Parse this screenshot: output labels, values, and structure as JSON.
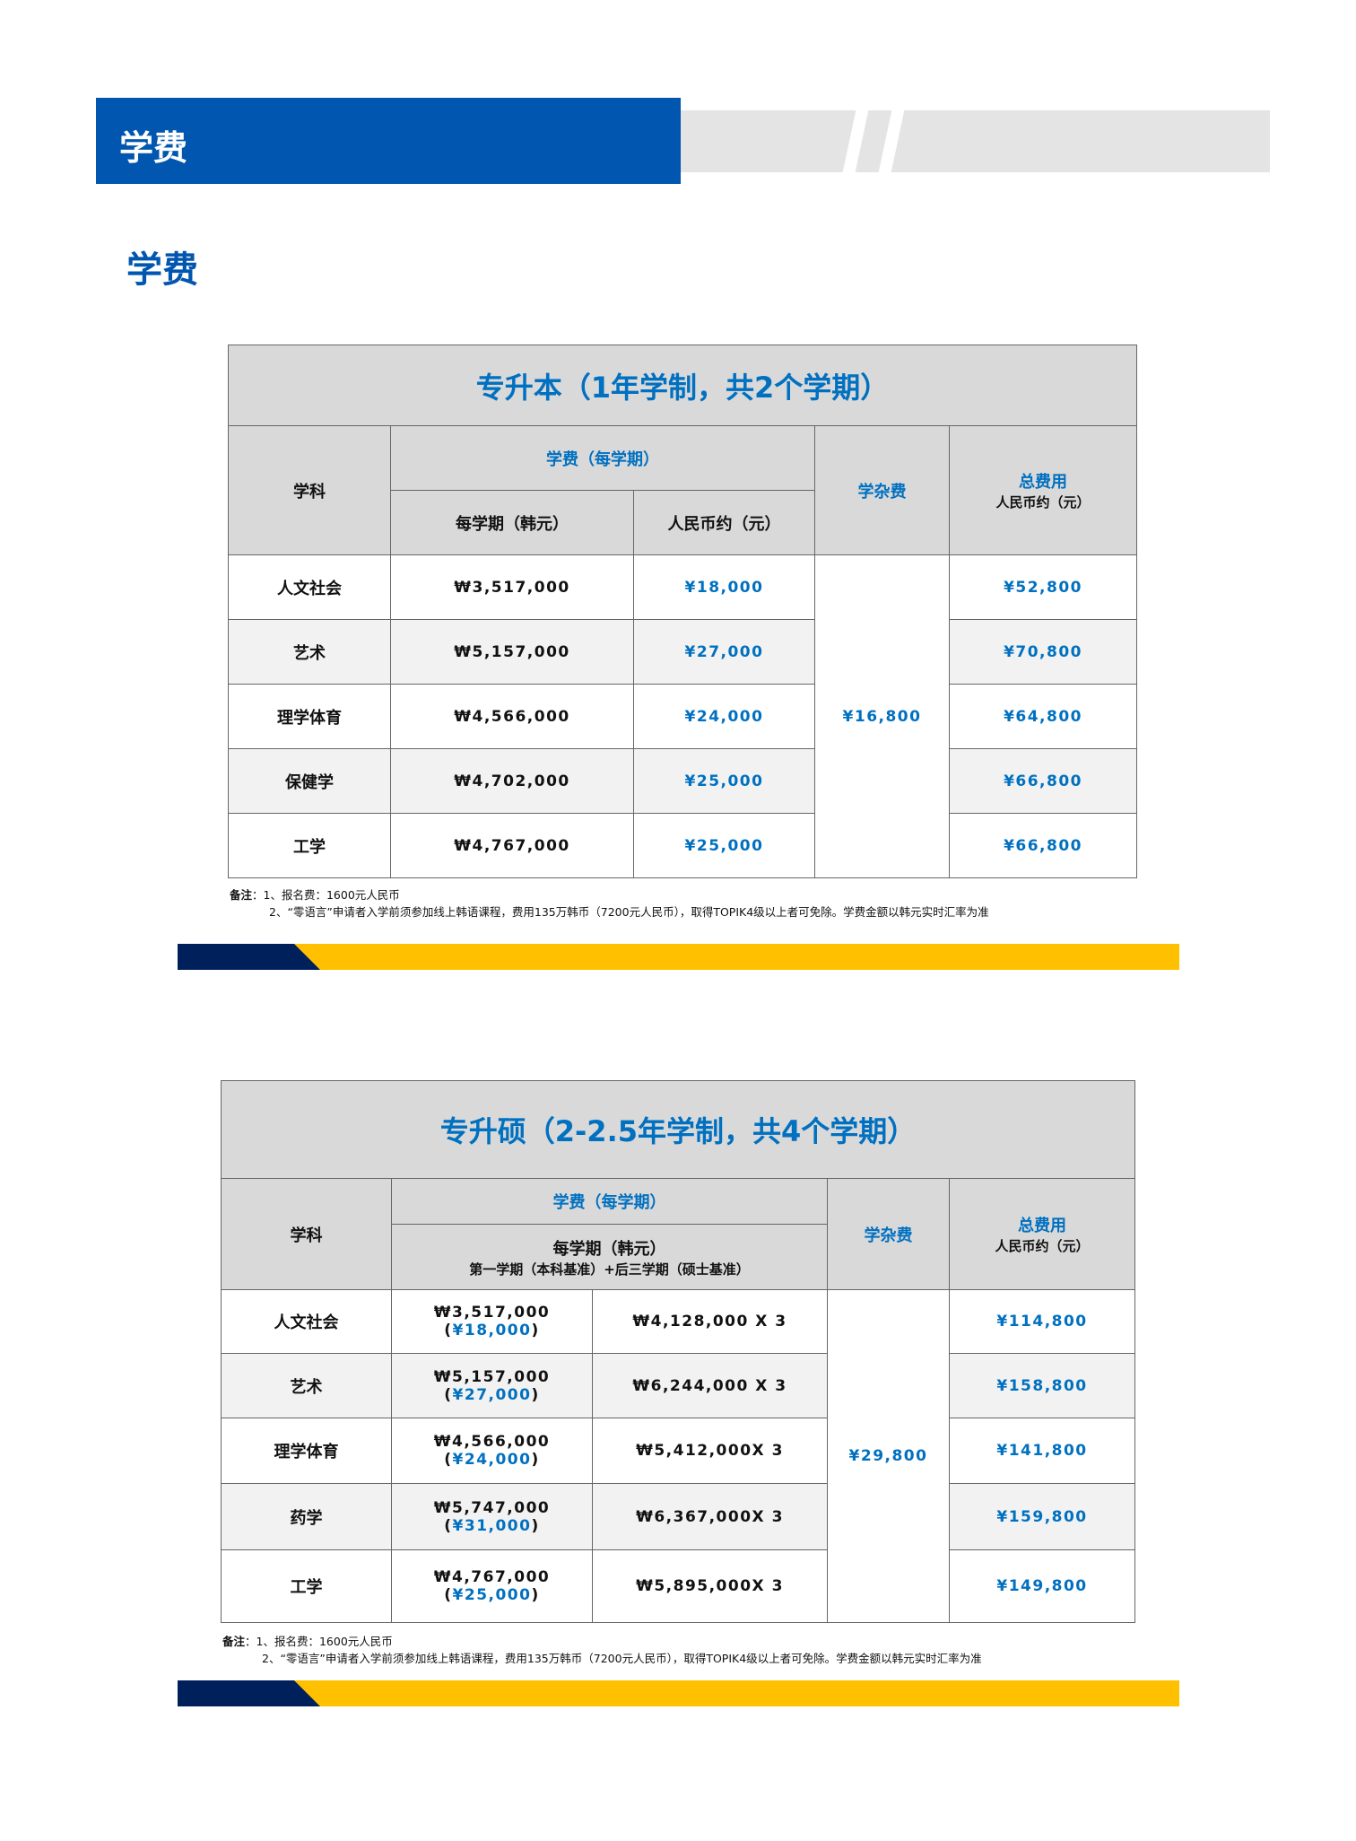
{
  "header": {
    "banner_title": "学费",
    "section_title": "学费"
  },
  "colors": {
    "brand_blue": "#0156b0",
    "accent_blue": "#0070c0",
    "header_gray": "#d9d9d9",
    "stripe_navy": "#00205c",
    "stripe_yellow": "#ffc000"
  },
  "table1": {
    "title": "专升本（1年学制，共2个学期）",
    "headers": {
      "subject": "学科",
      "tuition": "学费（每学期）",
      "krw": "每学期（韩元）",
      "cny": "人民币约（元）",
      "misc": "学杂费",
      "total": "总费用",
      "total_sub": "人民币约（元）"
    },
    "misc_fee": "¥16,800",
    "rows": [
      {
        "subject": "人文社会",
        "krw": "₩3,517,000",
        "cny": "¥18,000",
        "total": "¥52,800"
      },
      {
        "subject": "艺术",
        "krw": "₩5,157,000",
        "cny": "¥27,000",
        "total": "¥70,800"
      },
      {
        "subject": "理学体育",
        "krw": "₩4,566,000",
        "cny": "¥24,000",
        "total": "¥64,800"
      },
      {
        "subject": "保健学",
        "krw": "₩4,702,000",
        "cny": "¥25,000",
        "total": "¥66,800"
      },
      {
        "subject": "工学",
        "krw": "₩4,767,000",
        "cny": "¥25,000",
        "total": "¥66,800"
      }
    ],
    "notes": {
      "label": "备注",
      "line1": "：1、报名费：1600元人民币",
      "line2": "2、“零语言”申请者入学前须参加线上韩语课程，费用135万韩币（7200元人民币），取得TOPIK4级以上者可免除。学费金额以韩元实时汇率为准"
    }
  },
  "table2": {
    "title": "专升硕（2-2.5年学制，共4个学期）",
    "headers": {
      "subject": "学科",
      "tuition": "学费（每学期）",
      "krw": "每学期（韩元）",
      "krw_sub": "第一学期（本科基准）+后三学期（硕士基准）",
      "misc": "学杂费",
      "total": "总费用",
      "total_sub": "人民币约（元）"
    },
    "misc_fee": "¥29,800",
    "rows": [
      {
        "subject": "人文社会",
        "first_krw": "₩3,517,000",
        "first_cny": "¥18,000",
        "later": "₩4,128,000 X 3",
        "total": "¥114,800"
      },
      {
        "subject": "艺术",
        "first_krw": "₩5,157,000",
        "first_cny": "¥27,000",
        "later": "₩6,244,000 X 3",
        "total": "¥158,800"
      },
      {
        "subject": "理学体育",
        "first_krw": "₩4,566,000",
        "first_cny": "¥24,000",
        "later": "₩5,412,000X 3",
        "total": "¥141,800"
      },
      {
        "subject": "药学",
        "first_krw": "₩5,747,000",
        "first_cny": "¥31,000",
        "later": "₩6,367,000X 3",
        "total": "¥159,800"
      },
      {
        "subject": "工学",
        "first_krw": "₩4,767,000",
        "first_cny": "¥25,000",
        "later": "₩5,895,000X 3",
        "total": "¥149,800"
      }
    ],
    "notes": {
      "label": "备注",
      "line1": "：1、报名费：1600元人民币",
      "line2": "2、“零语言”申请者入学前须参加线上韩语课程，费用135万韩币（7200元人民币），取得TOPIK4级以上者可免除。学费金额以韩元实时汇率为准"
    }
  }
}
